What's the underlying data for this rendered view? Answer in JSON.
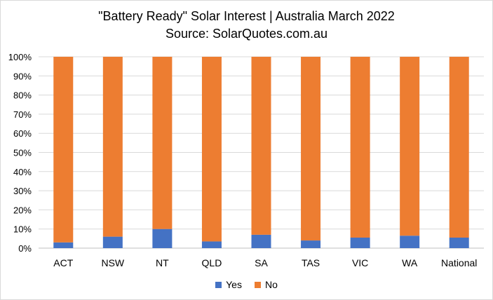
{
  "chart_data": {
    "type": "bar",
    "stacked": true,
    "percent_stacked": true,
    "title": "\"Battery Ready\" Solar Interest  |  Australia March 2022",
    "subtitle": "Source: SolarQuotes.com.au",
    "categories": [
      "ACT",
      "NSW",
      "NT",
      "QLD",
      "SA",
      "TAS",
      "VIC",
      "WA",
      "National"
    ],
    "series": [
      {
        "name": "Yes",
        "color": "#4472c4",
        "values": [
          3,
          6,
          10,
          3.5,
          7,
          4,
          5.5,
          6.5,
          5.5
        ]
      },
      {
        "name": "No",
        "color": "#ed7d31",
        "values": [
          97,
          94,
          90,
          96.5,
          93,
          96,
          94.5,
          93.5,
          94.5
        ]
      }
    ],
    "ylim": [
      0,
      100
    ],
    "yticks": [
      "0%",
      "10%",
      "20%",
      "30%",
      "40%",
      "50%",
      "60%",
      "70%",
      "80%",
      "90%",
      "100%"
    ],
    "grid": true,
    "legend_position": "bottom"
  }
}
